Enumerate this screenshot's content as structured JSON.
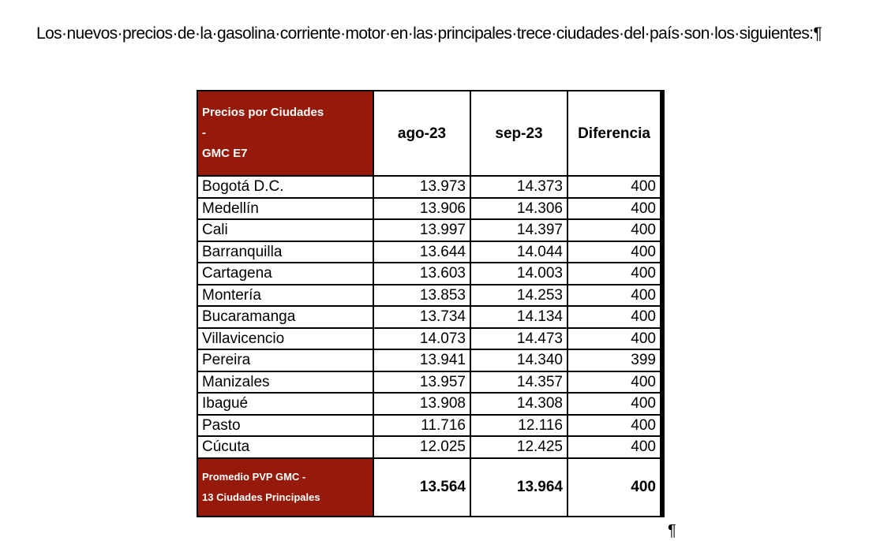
{
  "paragraph": "Los·nuevos·precios·de·la·gasolina·corriente·motor·en·las·principales·trece·ciudades·del·país·son·los·siguientes:¶",
  "table": {
    "header": {
      "label": [
        "Precios por Ciudades",
        "-",
        "GMC E7"
      ],
      "columns": [
        "ago-23",
        "sep-23",
        "Diferencia"
      ]
    },
    "rows": [
      [
        "Bogotá D.C.",
        "13.973",
        "14.373",
        "400"
      ],
      [
        "Medellín",
        "13.906",
        "14.306",
        "400"
      ],
      [
        "Cali",
        "13.997",
        "14.397",
        "400"
      ],
      [
        "Barranquilla",
        "13.644",
        "14.044",
        "400"
      ],
      [
        "Cartagena",
        "13.603",
        "14.003",
        "400"
      ],
      [
        "Montería",
        "13.853",
        "14.253",
        "400"
      ],
      [
        "Bucaramanga",
        "13.734",
        "14.134",
        "400"
      ],
      [
        "Villavicencio",
        "14.073",
        "14.473",
        "400"
      ],
      [
        "Pereira",
        "13.941",
        "14.340",
        "399"
      ],
      [
        "Manizales",
        "13.957",
        "14.357",
        "400"
      ],
      [
        "Ibagué",
        "13.908",
        "14.308",
        "400"
      ],
      [
        "Pasto",
        "11.716",
        "12.116",
        "400"
      ],
      [
        "Cúcuta",
        "12.025",
        "12.425",
        "400"
      ]
    ],
    "footer": {
      "label": [
        "Promedio PVP GMC -",
        "13 Ciudades Principales"
      ],
      "values": [
        "13.564",
        "13.964",
        "400"
      ]
    }
  },
  "pilcrow_after_table": "¶"
}
